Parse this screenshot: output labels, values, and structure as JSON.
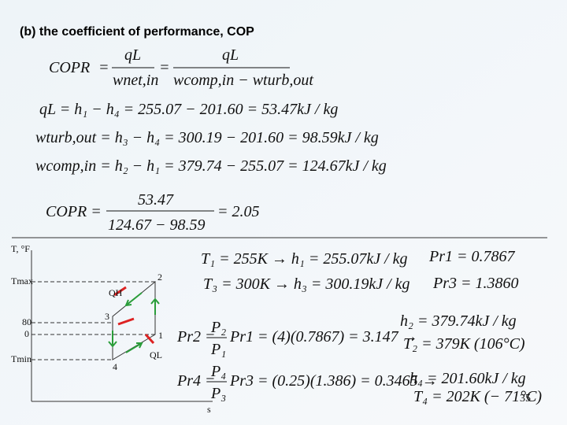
{
  "heading": "(b) the coefficient of performance,  COP",
  "cop_definition": {
    "lhs": "COPR",
    "eq1": "=",
    "frac1_num": "qL",
    "frac1_den": "wnet,in",
    "eq2": "=",
    "frac2_num": "qL",
    "frac2_den": "wcomp,in − wturb,out"
  },
  "equations": [
    "qL = h₁ − h₄ = 255.07 − 201.60 = 53.47kJ / kg",
    "wturb,out = h₃ − h₄ = 300.19 − 201.60 = 98.59kJ / kg",
    "wcomp,in = h₂ − h₁ = 379.74 − 255.07 = 124.67kJ / kg"
  ],
  "cop_result": {
    "lhs": "COPR =",
    "num": "53.47",
    "den": "124.67 − 98.59",
    "rhs": "= 2.05"
  },
  "diagram": {
    "axis_t": "T, °F",
    "t_max": "Tmax",
    "t_80": "80",
    "t_0": "0",
    "t_min": "Tmin",
    "axis_s": "s",
    "point_1": "1",
    "point_2": "2",
    "point_3": "3",
    "point_4": "4",
    "q_h": "QH",
    "q_l": "QL"
  },
  "right": {
    "line1": "T₁ = 255K → h₁ = 255.07kJ / kg",
    "pr1": "Pr1 = 0.7867",
    "line2": "T₃ = 300K → h₃ = 300.19kJ / kg",
    "pr3": "Pr3 = 1.3860",
    "h2": "h₂ = 379.74kJ / kg",
    "t2": "T₂ = 379K (106°C)",
    "pr2_lhs": "Pr2 =",
    "pr2_num": "P₂",
    "pr2_den": "P₁",
    "pr2_rhs": "Pr1 = (4)(0.7867) = 3.147 →",
    "pr4_lhs": "Pr4 =",
    "pr4_num": "P₄",
    "pr4_den": "P₃",
    "pr4_rhs": "Pr3 = (0.25)(1.386) = 0.3465 →",
    "h4": "h₄ = 201.60kJ / kg",
    "t4": "T₄ = 202K (− 71°C)"
  },
  "page_number": "35"
}
